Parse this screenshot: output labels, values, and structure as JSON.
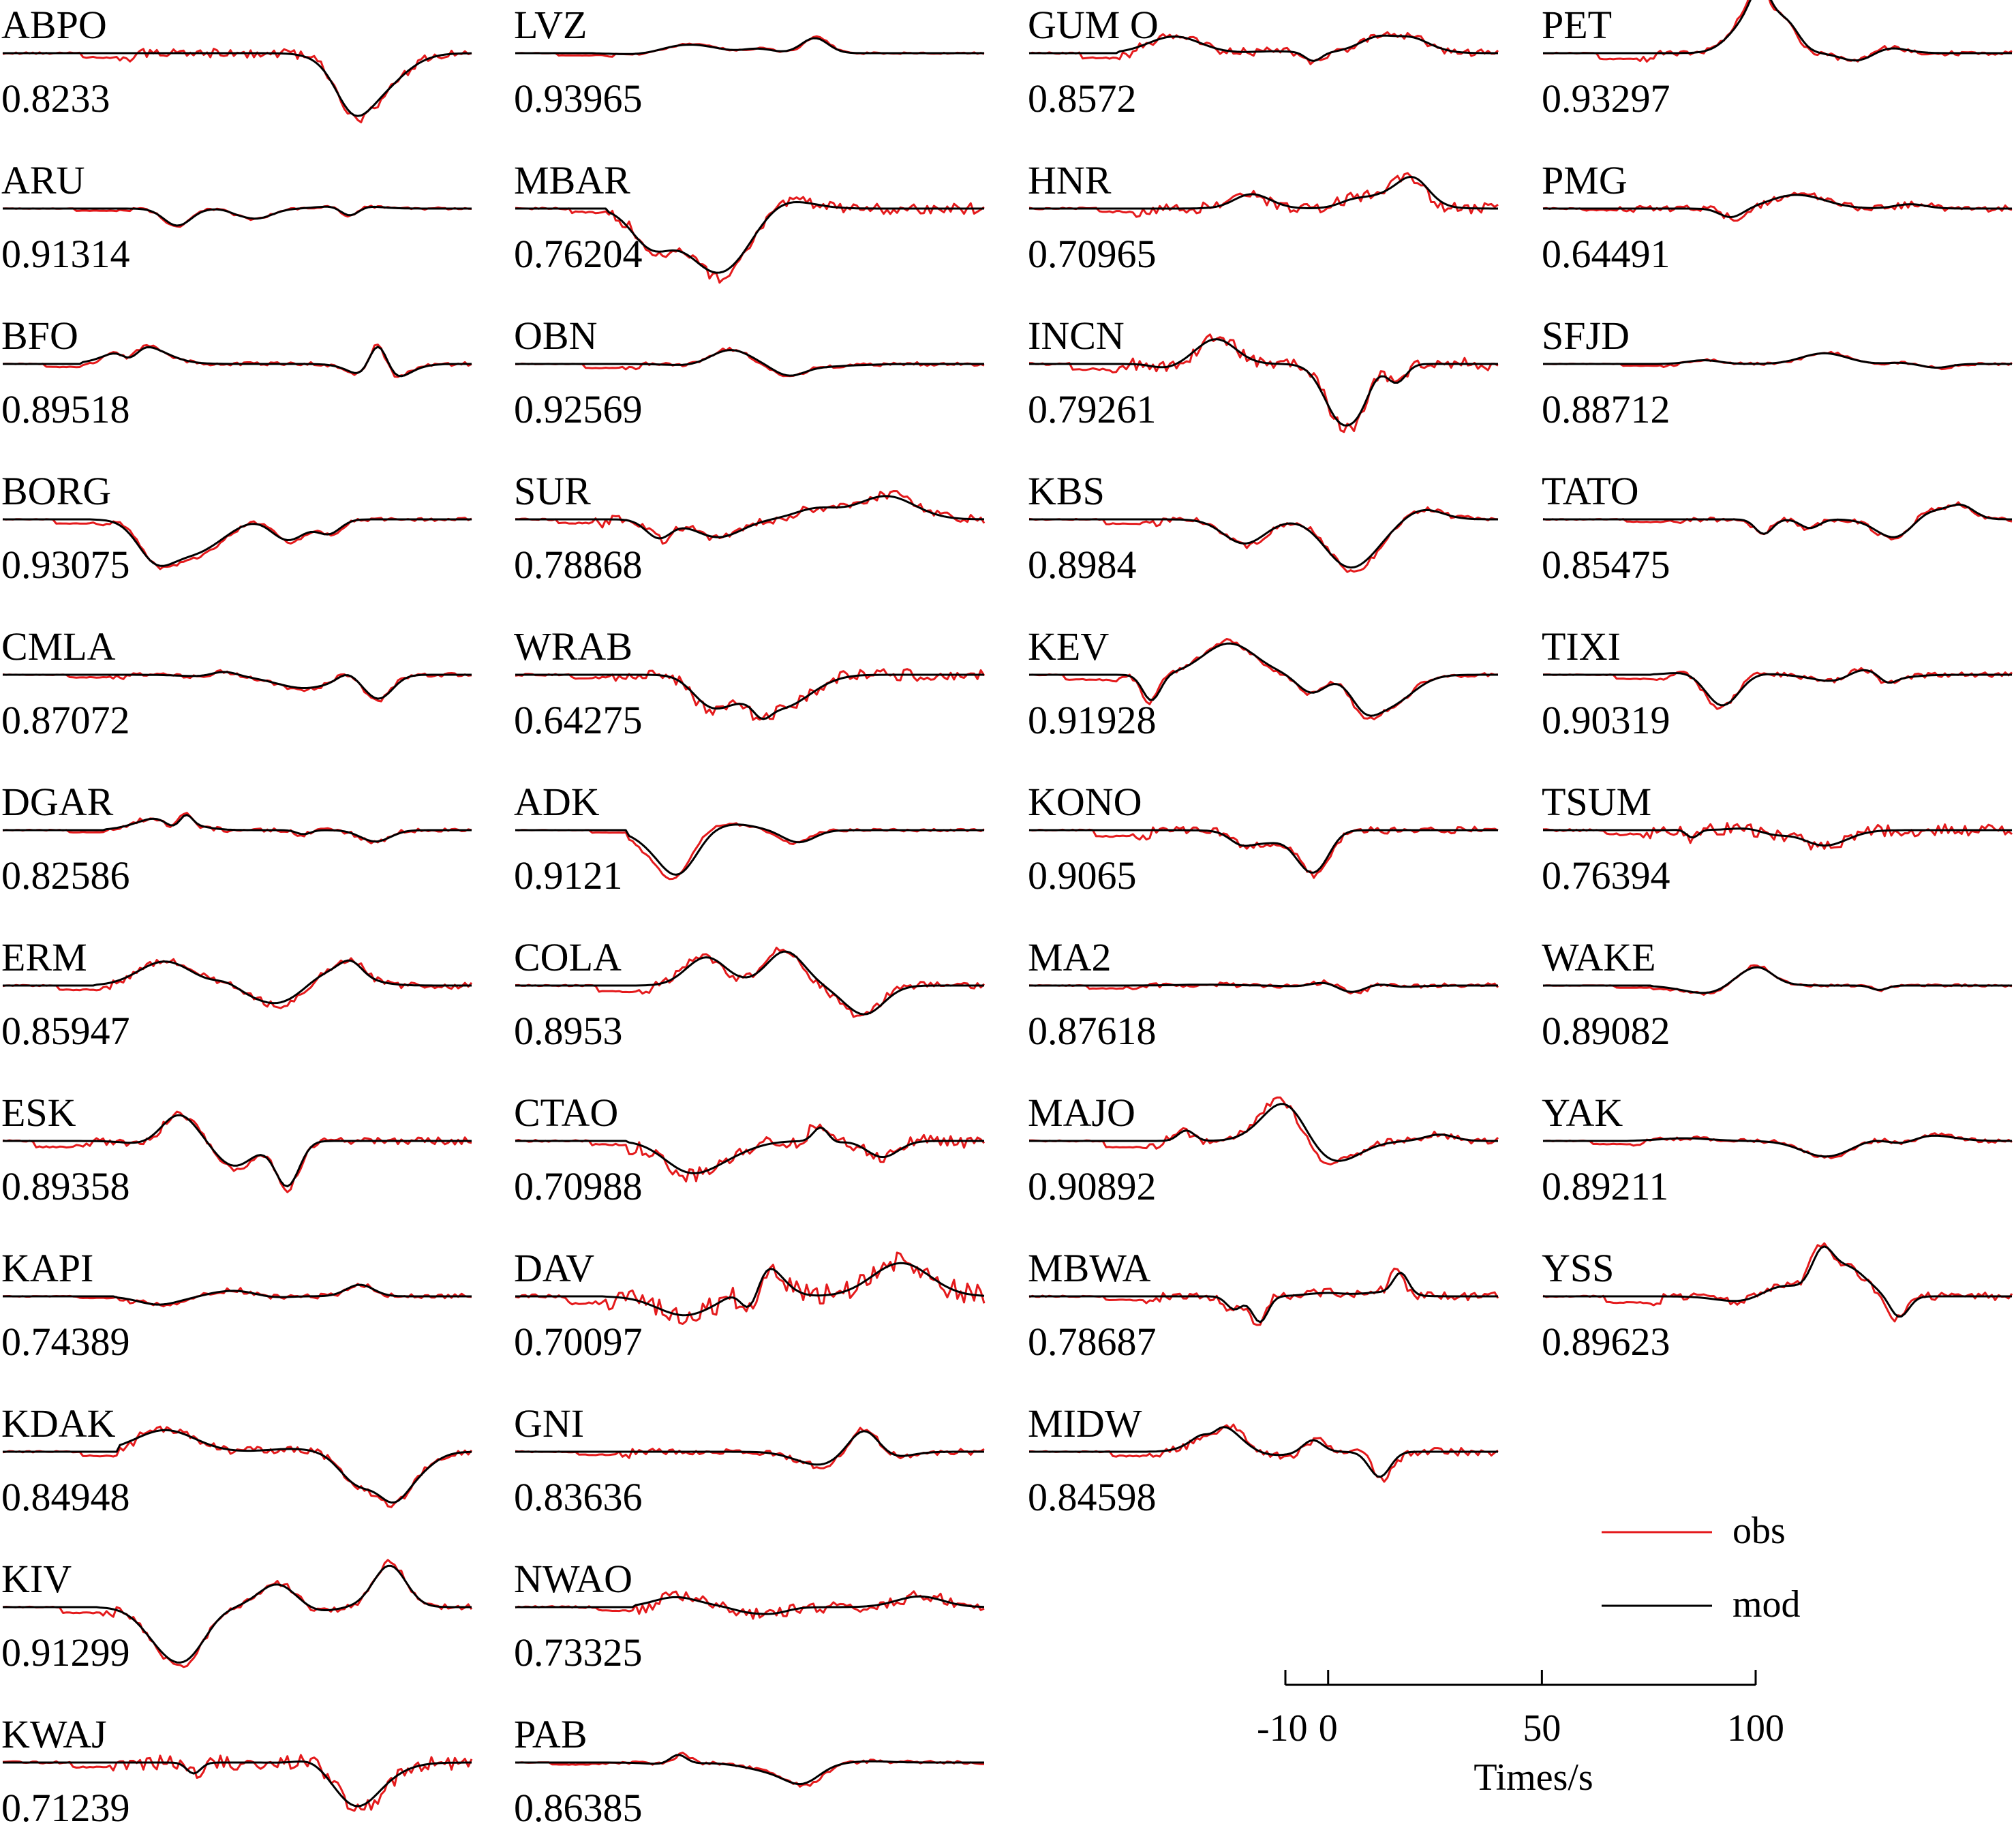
{
  "colors": {
    "obs": "#e41a1c",
    "mod": "#000000",
    "axis": "#000000"
  },
  "legend": [
    {
      "key": "obs",
      "label": "obs"
    },
    {
      "key": "mod",
      "label": "mod"
    }
  ],
  "chart_data": {
    "type": "line",
    "xlabel": "Times/s",
    "xticks": [
      "-10",
      "0",
      "50",
      "100"
    ],
    "tick_values": [
      -10,
      0,
      50,
      100
    ],
    "xlim": [
      -10,
      100
    ],
    "series_names": [
      "obs",
      "mod"
    ],
    "columns": [
      [
        {
          "name": "ABPO",
          "cc": "0.8233"
        },
        {
          "name": "ARU",
          "cc": "0.91314"
        },
        {
          "name": "BFO",
          "cc": "0.89518"
        },
        {
          "name": "BORG",
          "cc": "0.93075"
        },
        {
          "name": "CMLA",
          "cc": "0.87072"
        },
        {
          "name": "DGAR",
          "cc": "0.82586"
        },
        {
          "name": "ERM",
          "cc": "0.85947"
        },
        {
          "name": "ESK",
          "cc": "0.89358"
        },
        {
          "name": "KAPI",
          "cc": "0.74389"
        },
        {
          "name": "KDAK",
          "cc": "0.84948"
        },
        {
          "name": "KIV",
          "cc": "0.91299"
        },
        {
          "name": "KWAJ",
          "cc": "0.71239"
        }
      ],
      [
        {
          "name": "LVZ",
          "cc": "0.93965"
        },
        {
          "name": "MBAR",
          "cc": "0.76204"
        },
        {
          "name": "OBN",
          "cc": "0.92569"
        },
        {
          "name": "SUR",
          "cc": "0.78868"
        },
        {
          "name": "WRAB",
          "cc": "0.64275"
        },
        {
          "name": "ADK",
          "cc": "0.9121"
        },
        {
          "name": "COLA",
          "cc": "0.8953"
        },
        {
          "name": "CTAO",
          "cc": "0.70988"
        },
        {
          "name": "DAV",
          "cc": "0.70097"
        },
        {
          "name": "GNI",
          "cc": "0.83636"
        },
        {
          "name": "NWAO",
          "cc": "0.73325"
        },
        {
          "name": "PAB",
          "cc": "0.86385"
        }
      ],
      [
        {
          "name": "GUM O",
          "cc": "0.8572"
        },
        {
          "name": "HNR",
          "cc": "0.70965"
        },
        {
          "name": "INCN",
          "cc": "0.79261"
        },
        {
          "name": "KBS",
          "cc": "0.8984"
        },
        {
          "name": "KEV",
          "cc": "0.91928"
        },
        {
          "name": "KONO",
          "cc": "0.9065"
        },
        {
          "name": "MA2",
          "cc": "0.87618"
        },
        {
          "name": "MAJO",
          "cc": "0.90892"
        },
        {
          "name": "MBWA",
          "cc": "0.78687"
        },
        {
          "name": "MIDW",
          "cc": "0.84598"
        }
      ],
      [
        {
          "name": "PET",
          "cc": "0.93297"
        },
        {
          "name": "PMG",
          "cc": "0.64491"
        },
        {
          "name": "SFJD",
          "cc": "0.88712"
        },
        {
          "name": "TATO",
          "cc": "0.85475"
        },
        {
          "name": "TIXI",
          "cc": "0.90319"
        },
        {
          "name": "TSUM",
          "cc": "0.76394"
        },
        {
          "name": "WAKE",
          "cc": "0.89082"
        },
        {
          "name": "YAK",
          "cc": "0.89211"
        },
        {
          "name": "YSS",
          "cc": "0.89623"
        }
      ]
    ]
  }
}
